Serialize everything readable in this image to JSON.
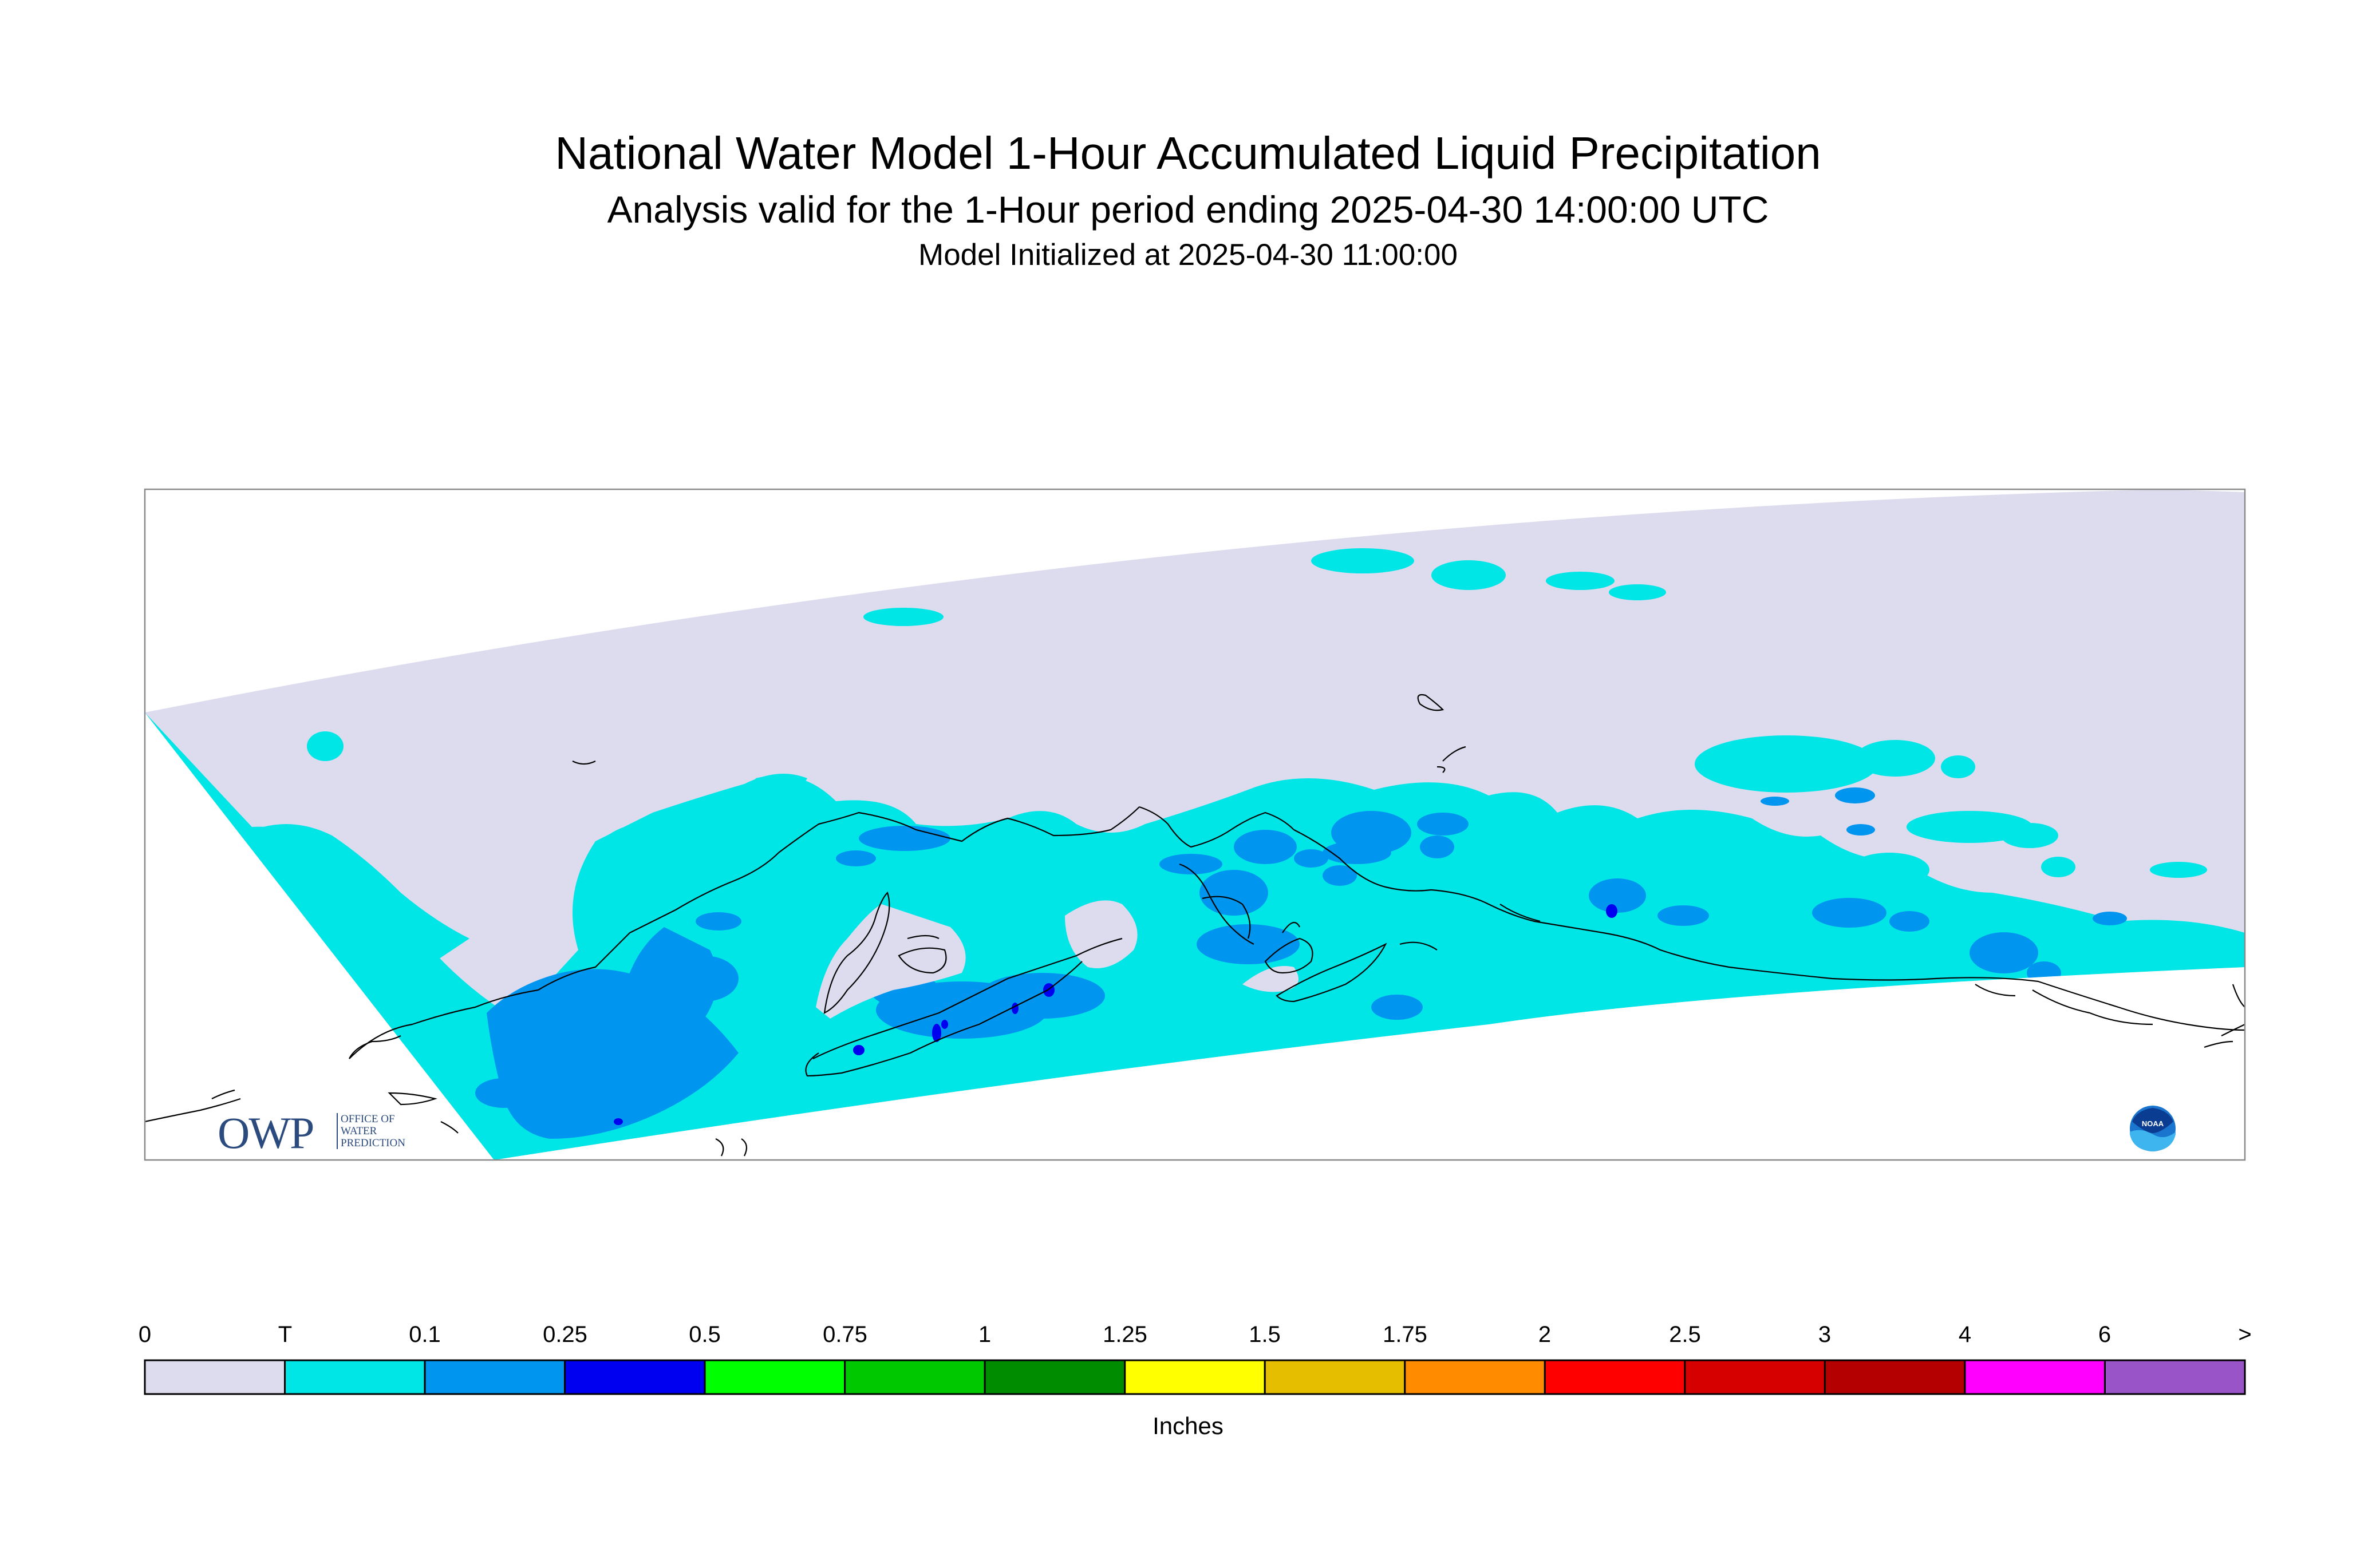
{
  "title": "National Water Model 1-Hour Accumulated Liquid Precipitation",
  "subtitle": "Analysis valid for the 1-Hour period ending 2025-04-30 14:00:00 UTC",
  "init_line": "Model Initialized at 2025-04-30 11:00:00",
  "logos": {
    "owp_mark": "OWP",
    "owp_text": [
      "OFFICE OF",
      "WATER",
      "PREDICTION"
    ],
    "noaa_text": "NOAA"
  },
  "legend": {
    "units": "Inches",
    "labels": [
      "0",
      "T",
      "0.1",
      "0.25",
      "0.5",
      "0.75",
      "1",
      "1.25",
      "1.5",
      "1.75",
      "2",
      "2.5",
      "3",
      "4",
      "6",
      ">"
    ],
    "colors": [
      "#dcdcee",
      "#00e5e5",
      "#0096f0",
      "#0000f0",
      "#00ff00",
      "#00c800",
      "#008c00",
      "#ffff00",
      "#e6be00",
      "#ff8c00",
      "#ff0000",
      "#d70000",
      "#b40000",
      "#ff00ff",
      "#9955c8"
    ]
  },
  "colors": {
    "domain": "#dcdcee",
    "trace": "#00e5e5",
    "light": "#0096f0",
    "moderate": "#0000f0",
    "coastline": "#000000"
  }
}
